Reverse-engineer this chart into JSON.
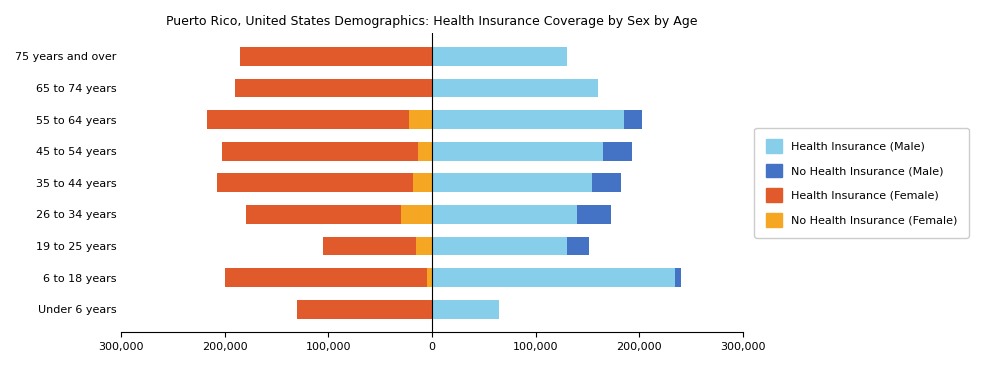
{
  "title": "Puerto Rico, United States Demographics: Health Insurance Coverage by Sex by Age",
  "age_groups": [
    "Under 6 years",
    "6 to 18 years",
    "19 to 25 years",
    "26 to 34 years",
    "35 to 44 years",
    "45 to 54 years",
    "55 to 64 years",
    "65 to 74 years",
    "75 years and over"
  ],
  "health_ins_female": [
    130000,
    195000,
    90000,
    150000,
    190000,
    190000,
    195000,
    190000,
    185000
  ],
  "no_health_ins_female": [
    0,
    5000,
    15000,
    30000,
    18000,
    13000,
    22000,
    0,
    0
  ],
  "health_ins_male": [
    65000,
    235000,
    130000,
    140000,
    155000,
    165000,
    185000,
    160000,
    130000
  ],
  "no_health_ins_male": [
    0,
    5000,
    22000,
    33000,
    28000,
    28000,
    18000,
    0,
    0
  ],
  "color_health_ins_male": "#87CEEB",
  "color_no_health_ins_male": "#4472C4",
  "color_health_ins_female": "#E05A2B",
  "color_no_health_ins_female": "#F5A623",
  "xlim": 300000,
  "tick_vals": [
    -300000,
    -200000,
    -100000,
    0,
    100000,
    200000,
    300000
  ],
  "tick_labels": [
    "300,000",
    "200,000",
    "100,000",
    "0",
    "100,000",
    "200,000",
    "300,000"
  ],
  "legend_labels": [
    "Health Insurance (Male)",
    "No Health Insurance (Male)",
    "Health Insurance (Female)",
    "No Health Insurance (Female)"
  ]
}
